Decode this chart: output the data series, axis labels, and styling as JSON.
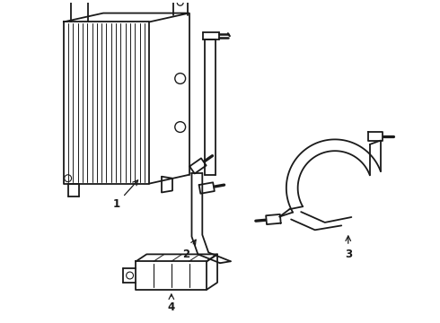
{
  "background_color": "#ffffff",
  "line_color": "#1a1a1a",
  "line_width": 1.3,
  "label_fontsize": 8.5,
  "figsize": [
    4.9,
    3.6
  ],
  "dpi": 100
}
